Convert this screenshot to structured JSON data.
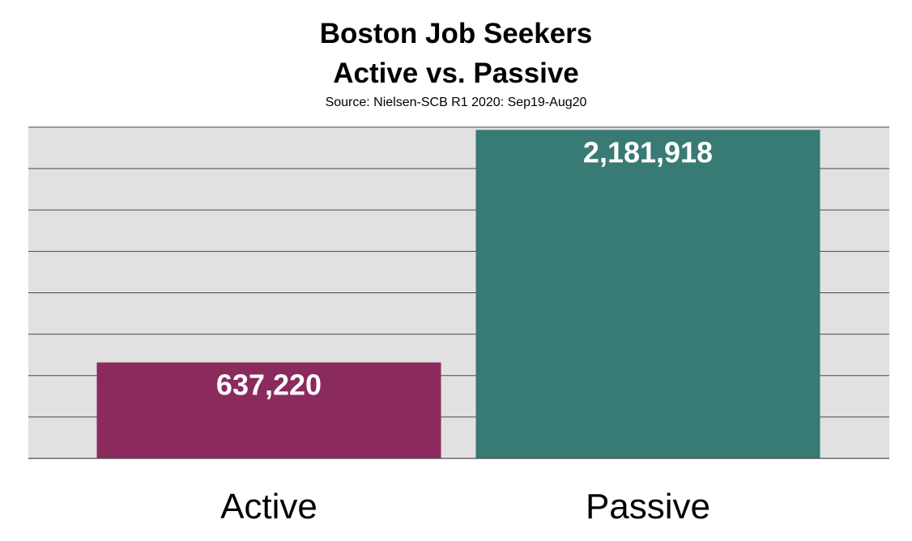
{
  "chart_data": {
    "type": "bar",
    "title": "Boston Job Seekers",
    "subtitle_line": "Active vs. Passive",
    "source": "Source: Nielsen-SCB R1 2020:  Sep19-Aug20",
    "categories": [
      "Active",
      "Passive"
    ],
    "values": [
      637220,
      2181918
    ],
    "value_labels": [
      "637,220",
      "2,181,918"
    ],
    "colors": [
      "#8a2a5d",
      "#387a74"
    ],
    "ylim": [
      0,
      2200000
    ],
    "grid": true,
    "gridline_count": 8,
    "plot_background": "#e1e1e1",
    "gridline_color": "#4a4a4a"
  }
}
